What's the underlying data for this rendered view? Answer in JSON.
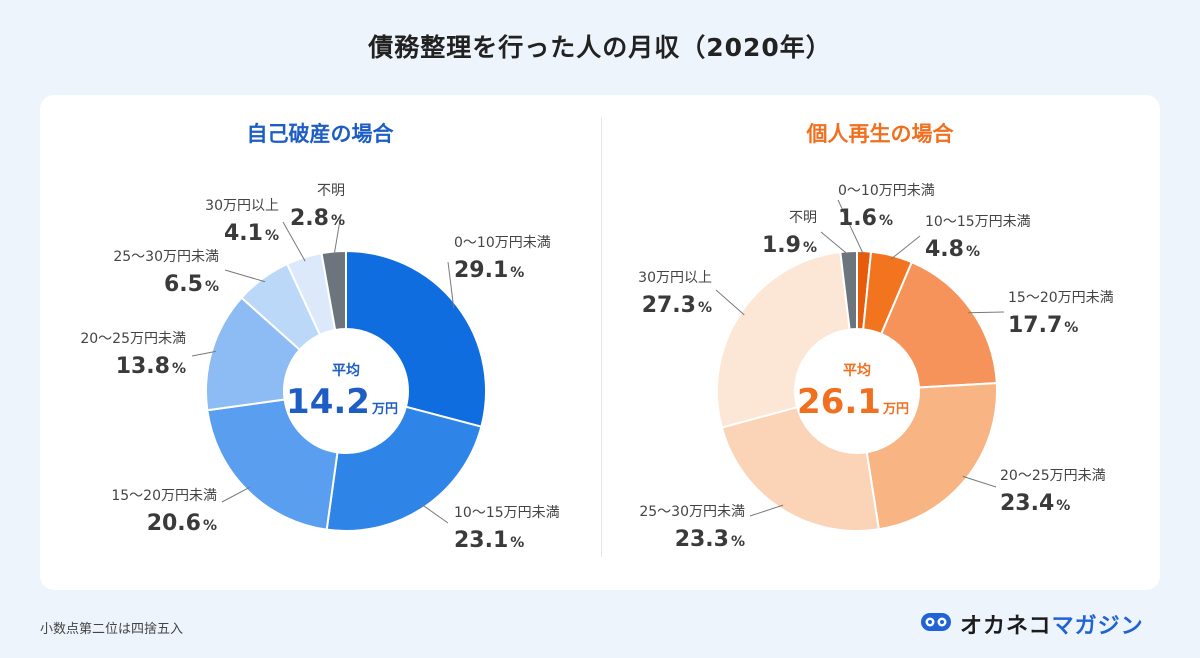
{
  "title": "債務整理を行った人の月収（2020年）",
  "footnote": "小数点第二位は四捨五入",
  "logo": {
    "main": "オカネコ",
    "accent": "マガジン"
  },
  "colors": {
    "blue_title": "#1e5ec4",
    "orange_title": "#f07020",
    "unknown_gray": "#6c757d"
  },
  "chart_data": [
    {
      "type": "pie",
      "title": "自己破産の場合",
      "center": {
        "label": "平均",
        "value": "14.2",
        "unit": "万円"
      },
      "slices": [
        {
          "label": "0〜10万円未満",
          "value": 29.1,
          "display": "29.1",
          "color": "#0f6de0"
        },
        {
          "label": "10〜15万円未満",
          "value": 23.1,
          "display": "23.1",
          "color": "#2f84e8"
        },
        {
          "label": "15〜20万円未満",
          "value": 20.6,
          "display": "20.6",
          "color": "#5a9ef0"
        },
        {
          "label": "20〜25万円未満",
          "value": 13.8,
          "display": "13.8",
          "color": "#8dbcf5"
        },
        {
          "label": "25〜30万円未満",
          "value": 6.5,
          "display": "6.5",
          "color": "#bcd8f9"
        },
        {
          "label": "30万円以上",
          "value": 4.1,
          "display": "4.1",
          "color": "#dce9fb"
        },
        {
          "label": "不明",
          "value": 2.8,
          "display": "2.8",
          "color": "#6c757d"
        }
      ]
    },
    {
      "type": "pie",
      "title": "個人再生の場合",
      "center": {
        "label": "平均",
        "value": "26.1",
        "unit": "万円"
      },
      "slices": [
        {
          "label": "0〜10万円未満",
          "value": 1.6,
          "display": "1.6",
          "color": "#e85a0c"
        },
        {
          "label": "10〜15万円未満",
          "value": 4.8,
          "display": "4.8",
          "color": "#f2741f"
        },
        {
          "label": "15〜20万円未満",
          "value": 17.7,
          "display": "17.7",
          "color": "#f5935a"
        },
        {
          "label": "20〜25万円未満",
          "value": 23.4,
          "display": "23.4",
          "color": "#f8b482"
        },
        {
          "label": "25〜30万円未満",
          "value": 23.3,
          "display": "23.3",
          "color": "#fbd3b6"
        },
        {
          "label": "30万円以上",
          "value": 27.3,
          "display": "27.3",
          "color": "#fce6d6"
        },
        {
          "label": "不明",
          "value": 1.9,
          "display": "1.9",
          "color": "#6c757d"
        }
      ]
    }
  ]
}
